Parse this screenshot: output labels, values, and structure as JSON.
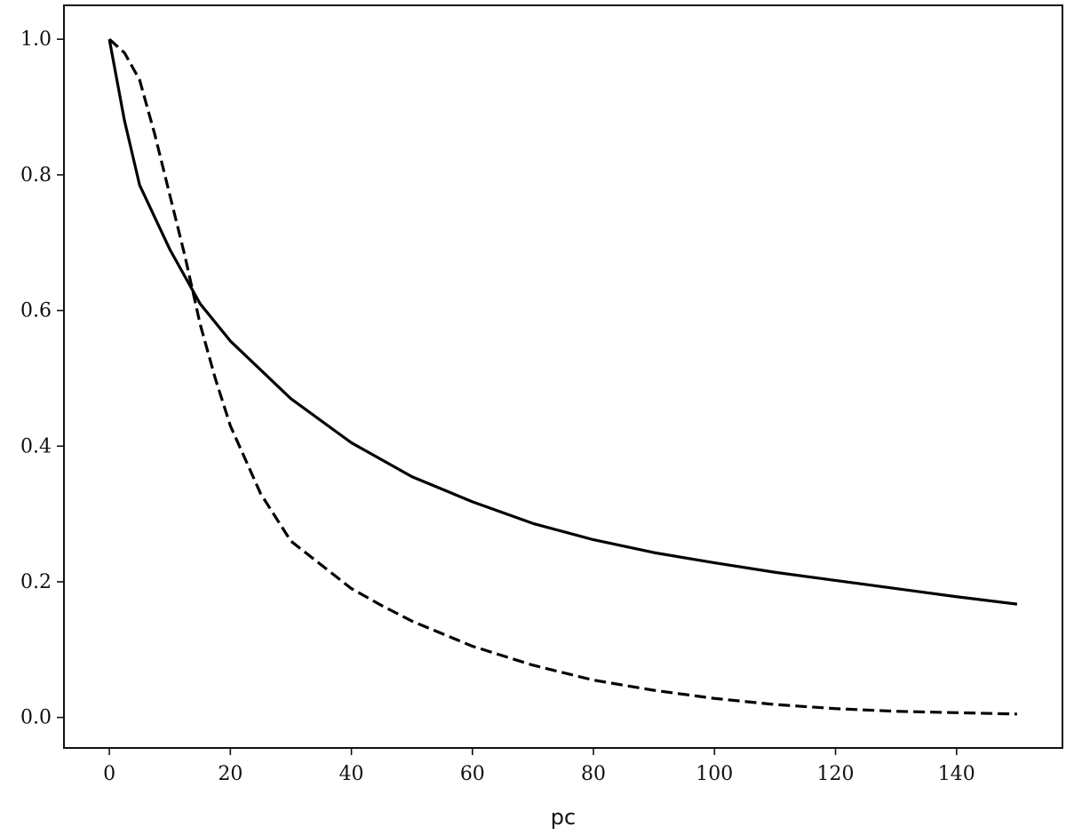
{
  "chart_data": {
    "type": "line",
    "title": "",
    "xlabel": "pc",
    "ylabel": "",
    "xlim": [
      -7.5,
      157.5
    ],
    "ylim": [
      -0.045,
      1.05
    ],
    "x_ticks": [
      0,
      20,
      40,
      60,
      80,
      100,
      120,
      140
    ],
    "x_tick_labels": [
      "0",
      "20",
      "40",
      "60",
      "80",
      "100",
      "120",
      "140"
    ],
    "y_ticks": [
      0.0,
      0.2,
      0.4,
      0.6,
      0.8,
      1.0
    ],
    "y_tick_labels": [
      "0.0",
      "0.2",
      "0.4",
      "0.6",
      "0.8",
      "1.0"
    ],
    "grid": false,
    "legend": "none",
    "series": [
      {
        "style": "solid",
        "color": "#000000",
        "x": [
          0,
          2.5,
          5,
          10,
          15,
          20,
          30,
          40,
          50,
          60,
          70,
          80,
          90,
          100,
          110,
          120,
          130,
          140,
          150
        ],
        "y": [
          1.0,
          0.88,
          0.785,
          0.69,
          0.61,
          0.555,
          0.47,
          0.405,
          0.355,
          0.318,
          0.286,
          0.262,
          0.243,
          0.228,
          0.214,
          0.202,
          0.19,
          0.178,
          0.167
        ]
      },
      {
        "style": "dashed",
        "color": "#000000",
        "x": [
          0,
          2.5,
          5,
          7.5,
          10,
          12.5,
          15,
          17.5,
          20,
          25,
          30,
          35,
          40,
          45,
          50,
          60,
          70,
          80,
          90,
          100,
          110,
          120,
          130,
          140,
          150
        ],
        "y": [
          1.0,
          0.98,
          0.94,
          0.86,
          0.77,
          0.68,
          0.58,
          0.5,
          0.43,
          0.33,
          0.26,
          0.225,
          0.19,
          0.165,
          0.142,
          0.105,
          0.077,
          0.055,
          0.04,
          0.028,
          0.019,
          0.013,
          0.009,
          0.007,
          0.005
        ]
      }
    ]
  }
}
